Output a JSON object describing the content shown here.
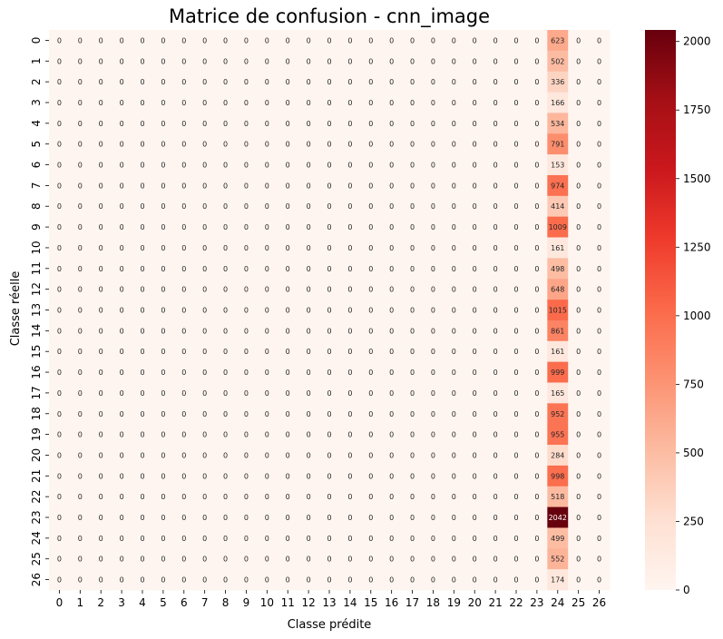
{
  "chart_data": {
    "type": "heatmap",
    "title": "Matrice de confusion - cnn_image",
    "xlabel": "Classe prédite",
    "ylabel": "Classe réelle",
    "x_ticks": [
      "0",
      "1",
      "2",
      "3",
      "4",
      "5",
      "6",
      "7",
      "8",
      "9",
      "10",
      "11",
      "12",
      "13",
      "14",
      "15",
      "16",
      "17",
      "18",
      "19",
      "20",
      "21",
      "22",
      "23",
      "24",
      "25",
      "26"
    ],
    "y_ticks": [
      "0",
      "1",
      "2",
      "3",
      "4",
      "5",
      "6",
      "7",
      "8",
      "9",
      "10",
      "11",
      "12",
      "13",
      "14",
      "15",
      "16",
      "17",
      "18",
      "19",
      "20",
      "21",
      "22",
      "23",
      "24",
      "25",
      "26"
    ],
    "predicted_column": 24,
    "column_24_values": [
      623,
      502,
      336,
      166,
      534,
      791,
      153,
      974,
      414,
      1009,
      161,
      498,
      648,
      1015,
      861,
      161,
      999,
      165,
      952,
      955,
      284,
      998,
      518,
      2042,
      499,
      552,
      174
    ],
    "other_cells_value": 0,
    "colormap": "Reds",
    "colorbar": {
      "range": [
        0,
        2042
      ],
      "ticks": [
        0,
        250,
        500,
        750,
        1000,
        1250,
        1500,
        1750,
        2000
      ]
    },
    "grid": false,
    "legend": "colorbar-right"
  }
}
